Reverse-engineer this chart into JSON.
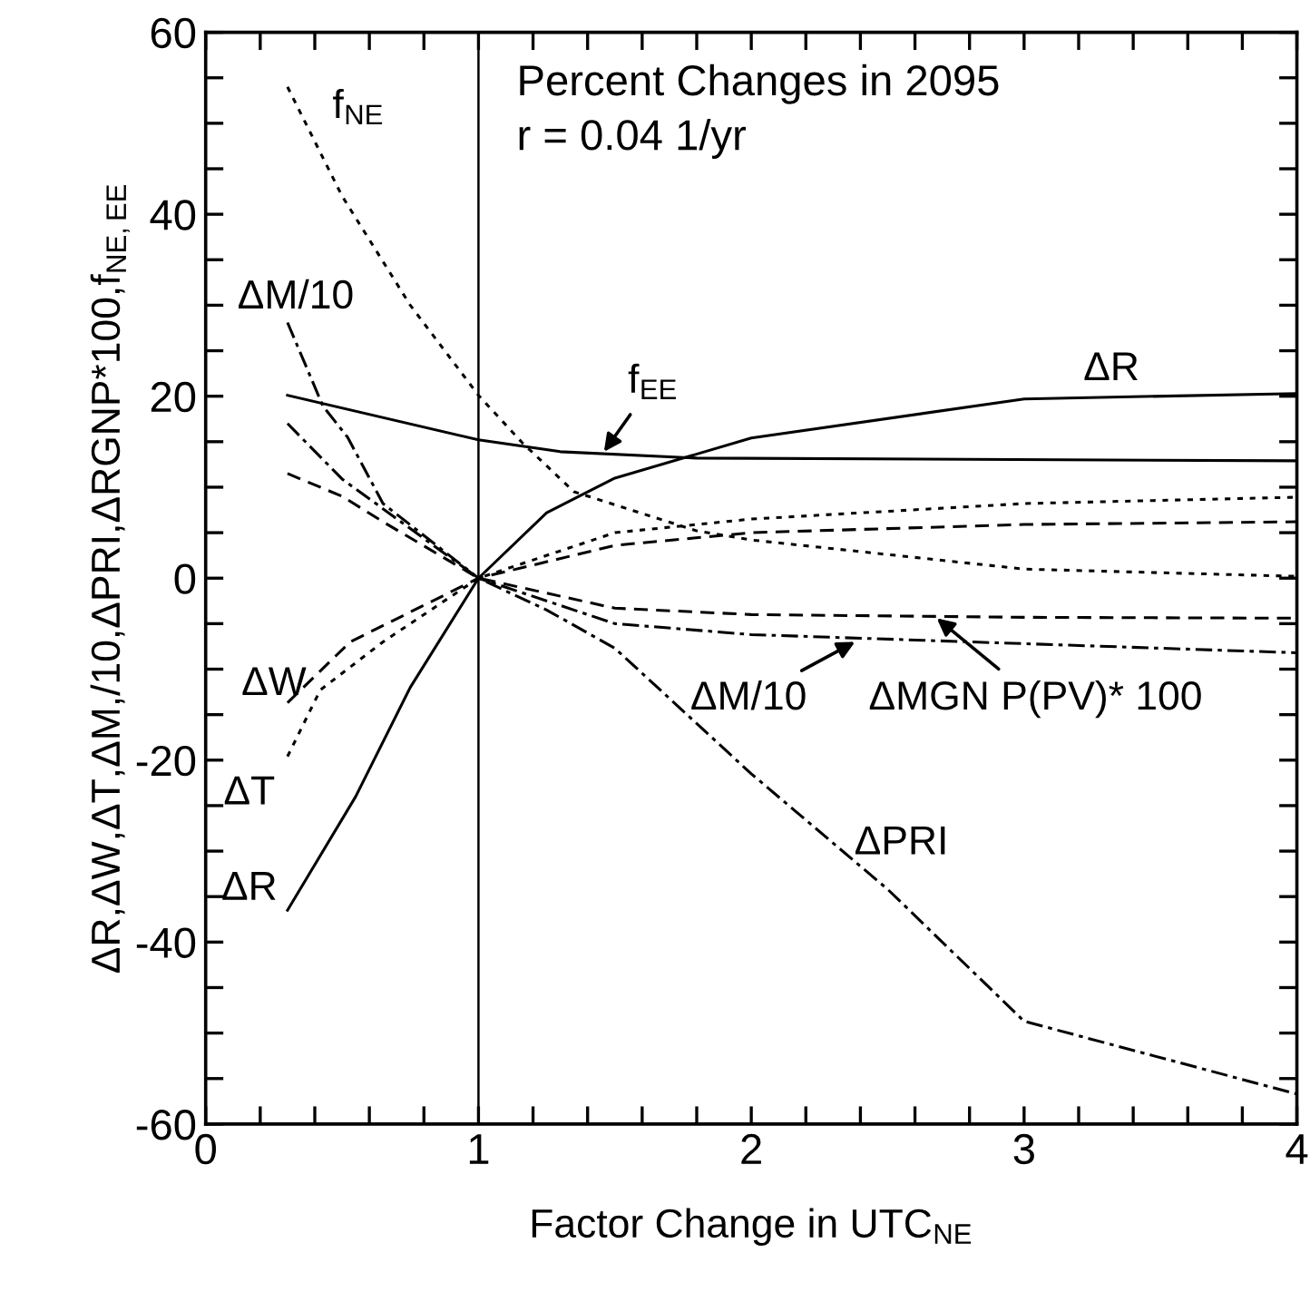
{
  "chart_data": {
    "type": "line",
    "title": "Percent Changes in 2095",
    "subtitle": "r = 0.04 1/yr",
    "xlabel": "Factor Change in UTC$_{NE}$",
    "ylabel": "ΔR,ΔW,ΔT,ΔM,/10,ΔPRI,ΔRGNP*100,f$_{NE,EE}$",
    "xlim": [
      0,
      4
    ],
    "ylim": [
      -60,
      60
    ],
    "xticks": [
      0,
      {
        "value": 0.2,
        "label": null
      },
      {
        "value": 0.4,
        "label": null
      },
      {
        "value": 0.6,
        "label": null
      },
      {
        "value": 0.8,
        "label": null
      },
      1,
      {
        "value": 1.2,
        "label": null
      },
      {
        "value": 1.4,
        "label": null
      },
      {
        "value": 1.6,
        "label": null
      },
      {
        "value": 1.8,
        "label": null
      },
      2,
      {
        "value": 2.2,
        "label": null
      },
      {
        "value": 2.4,
        "label": null
      },
      {
        "value": 2.6,
        "label": null
      },
      {
        "value": 2.8,
        "label": null
      },
      3,
      {
        "value": 3.2,
        "label": null
      },
      {
        "value": 3.4,
        "label": null
      },
      {
        "value": 3.6,
        "label": null
      },
      {
        "value": 3.8,
        "label": null
      },
      4
    ],
    "yticks": [
      -60,
      {
        "value": -55,
        "label": null
      },
      {
        "value": -50,
        "label": null
      },
      {
        "value": -45,
        "label": null
      },
      -40,
      {
        "value": -35,
        "label": null
      },
      {
        "value": -30,
        "label": null
      },
      {
        "value": -25,
        "label": null
      },
      -20,
      {
        "value": -15,
        "label": null
      },
      {
        "value": -10,
        "label": null
      },
      {
        "value": -5,
        "label": null
      },
      0,
      {
        "value": 5,
        "label": null
      },
      {
        "value": 10,
        "label": null
      },
      {
        "value": 15,
        "label": null
      },
      20,
      {
        "value": 25,
        "label": null
      },
      {
        "value": 30,
        "label": null
      },
      {
        "value": 35,
        "label": null
      },
      40,
      {
        "value": 45,
        "label": null
      },
      {
        "value": 50,
        "label": null
      },
      {
        "value": 55,
        "label": null
      },
      60
    ],
    "grid": false,
    "legend": false,
    "marker": "none",
    "ref_lines": [
      {
        "axis": "x",
        "value": 1,
        "color": "#000000",
        "line_style": "solid"
      }
    ],
    "series": [
      {
        "color": "#000000",
        "line_style": "solid",
        "x": [
          0.3,
          0.55,
          0.75,
          1,
          1.25,
          1.5,
          2,
          3,
          4
        ],
        "values": [
          -36.5,
          -24,
          -12,
          0,
          7.2,
          11,
          15.4,
          19.7,
          20.3
        ]
      },
      {
        "color": "#000000",
        "line_style": "solid",
        "x": [
          0.3,
          1,
          1.3,
          1.8,
          4
        ],
        "values": [
          20.1,
          15.2,
          13.9,
          13.2,
          12.9
        ]
      },
      {
        "color": "#000000",
        "line_style": "dotted",
        "x": [
          0.3,
          0.5,
          0.75,
          1,
          1.16,
          1.35,
          1.8,
          2,
          3,
          4
        ],
        "values": [
          54,
          42,
          30,
          20.1,
          14.9,
          9.5,
          5.2,
          4.2,
          1,
          0.2
        ]
      },
      {
        "color": "#000000",
        "line_style": "dashdot",
        "x": [
          0.3,
          0.43,
          0.52,
          0.65,
          1,
          1.5,
          2,
          3,
          4
        ],
        "values": [
          28.1,
          18.9,
          15.5,
          8.2,
          0,
          -5,
          -6.2,
          -7.2,
          -8.2
        ]
      },
      {
        "color": "#000000",
        "line_style": "dashed",
        "x": [
          0.3,
          0.5,
          0.65,
          1,
          1.5,
          2,
          3,
          4
        ],
        "values": [
          11.5,
          9,
          6.2,
          0,
          -3.3,
          -4,
          -4.3,
          -4.4
        ]
      },
      {
        "color": "#000000",
        "line_style": "dashed",
        "x": [
          0.3,
          0.53,
          1,
          1.5,
          2,
          3,
          4
        ],
        "values": [
          -13.7,
          -7,
          0,
          3.6,
          5,
          5.9,
          6.2
        ]
      },
      {
        "color": "#000000",
        "line_style": "dotted",
        "x": [
          0.3,
          0.42,
          0.65,
          1,
          1.5,
          2,
          3,
          4
        ],
        "values": [
          -19.6,
          -12.3,
          -7,
          0,
          5,
          6.5,
          8.2,
          8.9
        ]
      },
      {
        "color": "#000000",
        "line_style": "dashdot",
        "x": [
          0.3,
          0.5,
          1,
          1.25,
          1.5,
          2,
          2.5,
          3,
          4
        ],
        "values": [
          17,
          10.9,
          0,
          -3.5,
          -7.7,
          -21.5,
          -34.2,
          -48.7,
          -56.7
        ]
      }
    ],
    "annotations": [
      "f$_{NE}$",
      "ΔM/10",
      "ΔW",
      "ΔT",
      "ΔR",
      "ΔR",
      "ΔPRI",
      {
        "text": "f$_{EE}$",
        "x": 1.46,
        "y": 13.9
      },
      {
        "text": "ΔM/10",
        "x": 2.38,
        "y": -7
      },
      {
        "text": "ΔMGN P(PV)* 100",
        "x": 2.68,
        "y": -4.4
      }
    ]
  }
}
